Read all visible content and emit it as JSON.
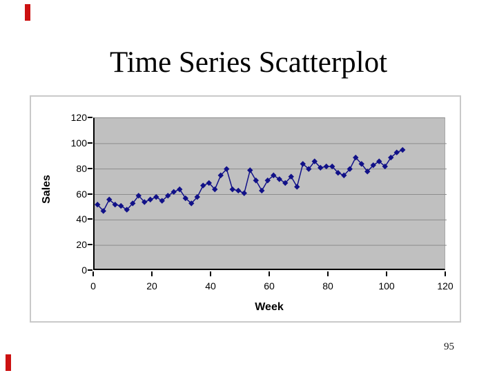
{
  "slide": {
    "title": "Time Series Scatterplot",
    "page_number": "95",
    "accent_marks_color": "#cc1111"
  },
  "chart_data": {
    "type": "scatter",
    "title": "",
    "xlabel": "Week",
    "ylabel": "Sales",
    "xlim": [
      0,
      120
    ],
    "ylim": [
      0,
      120
    ],
    "xticks": [
      0,
      20,
      40,
      60,
      80,
      100,
      120
    ],
    "yticks": [
      0,
      20,
      40,
      60,
      80,
      100,
      120
    ],
    "grid": "horizontal-only",
    "legend": "none",
    "plot_background": "#c0c0c0",
    "gridline_color": "#8c8c8c",
    "marker": "diamond",
    "marker_color": "#111188",
    "connected_by_lines": true,
    "series": [
      {
        "name": "Sales",
        "x": [
          1,
          3,
          5,
          7,
          9,
          11,
          13,
          15,
          17,
          19,
          21,
          23,
          25,
          27,
          29,
          31,
          33,
          35,
          37,
          39,
          41,
          43,
          45,
          47,
          49,
          51,
          53,
          55,
          57,
          59,
          61,
          63,
          65,
          67,
          69,
          71,
          73,
          75,
          77,
          79,
          81,
          83,
          85,
          87,
          89,
          91,
          93,
          95,
          97,
          99,
          101,
          103,
          105
        ],
        "y": [
          52,
          47,
          56,
          52,
          51,
          48,
          53,
          59,
          54,
          56,
          58,
          55,
          59,
          62,
          64,
          57,
          53,
          58,
          67,
          69,
          64,
          75,
          80,
          64,
          63,
          61,
          79,
          71,
          63,
          71,
          75,
          72,
          69,
          74,
          66,
          84,
          80,
          86,
          81,
          82,
          82,
          77,
          75,
          80,
          89,
          84,
          78,
          83,
          86,
          82,
          89,
          93,
          95
        ]
      }
    ]
  }
}
